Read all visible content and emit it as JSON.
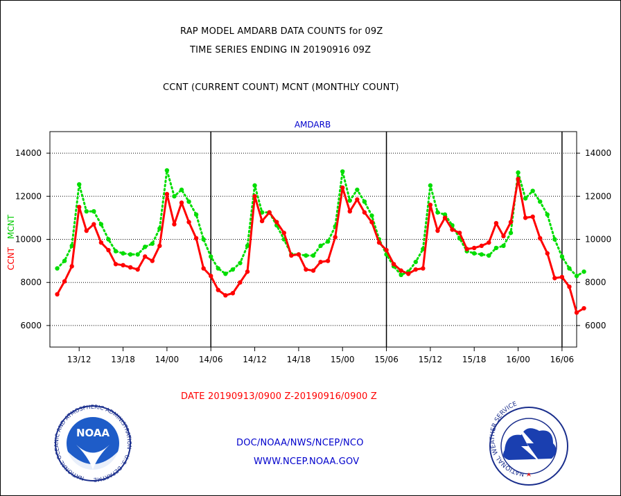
{
  "header": {
    "title_line1": "RAP MODEL AMDARB DATA COUNTS for 09Z",
    "title_line2": "TIME SERIES ENDING IN 20190916 09Z",
    "subtitle": "CCNT (CURRENT COUNT) MCNT (MONTHLY COUNT)"
  },
  "footer": {
    "date_range": "DATE 20190913/0900 Z-20190916/0900 Z",
    "org_line": "DOC/NOAA/NWS/NCEP/NCO",
    "url": "WWW.NCEP.NOAA.GOV"
  },
  "logos": {
    "noaa": {
      "text": "NOAA",
      "ring_text": "NATIONAL OCEANIC AND ATMOSPHERIC ADMINISTRATION · U.S. DEPARTMENT OF COMMERCE"
    },
    "nws": {
      "ring_text": "NATIONAL WEATHER SERVICE"
    }
  },
  "colors": {
    "ccnt": "#ff0000",
    "mcnt": "#00dd00",
    "plot_title": "#0000cc",
    "date_text": "#ff0000",
    "footer_text": "#0000cc"
  },
  "chart_data": {
    "type": "line",
    "title": "AMDARB",
    "ylabel_ccnt": "CCNT",
    "ylabel_mcnt": "MCNT",
    "ylim": [
      5000,
      15000
    ],
    "yticks": [
      6000,
      8000,
      10000,
      12000,
      14000
    ],
    "ytick_labels": [
      "6000",
      "8000",
      "10000",
      "12000",
      "14000"
    ],
    "x_range_hours": [
      -1,
      71
    ],
    "xticks": [
      {
        "hour": 3,
        "label": "13/12"
      },
      {
        "hour": 9,
        "label": "13/18"
      },
      {
        "hour": 15,
        "label": "14/00"
      },
      {
        "hour": 21,
        "label": "14/06"
      },
      {
        "hour": 27,
        "label": "14/12"
      },
      {
        "hour": 33,
        "label": "14/18"
      },
      {
        "hour": 39,
        "label": "15/00"
      },
      {
        "hour": 45,
        "label": "15/06"
      },
      {
        "hour": 51,
        "label": "15/12"
      },
      {
        "hour": 57,
        "label": "15/18"
      },
      {
        "hour": 63,
        "label": "16/00"
      },
      {
        "hour": 69,
        "label": "16/06"
      }
    ],
    "day_boundaries": [
      21,
      45,
      69
    ],
    "grid": true,
    "series": [
      {
        "name": "CCNT",
        "values": [
          7450,
          8050,
          8750,
          11500,
          10400,
          10700,
          9850,
          9500,
          8850,
          8800,
          8700,
          8600,
          9200,
          9000,
          9700,
          12100,
          10700,
          11700,
          10800,
          10050,
          8650,
          8300,
          7650,
          7400,
          7500,
          8000,
          8500,
          12000,
          10850,
          11250,
          10800,
          10300,
          9250,
          9300,
          8600,
          8550,
          8950,
          9000,
          10100,
          12400,
          11300,
          11850,
          11250,
          10800,
          9850,
          9500,
          8850,
          8550,
          8400,
          8600,
          8650,
          11600,
          10400,
          11000,
          10450,
          10300,
          9550,
          9600,
          9700,
          9850,
          10750,
          10150,
          10800,
          12800,
          11000,
          11050,
          10050,
          9350,
          8200,
          8250,
          7800,
          6600,
          6800
        ]
      },
      {
        "name": "MCNT",
        "values": [
          8650,
          9000,
          9700,
          12550,
          11300,
          11300,
          10700,
          10000,
          9450,
          9350,
          9300,
          9300,
          9650,
          9800,
          10500,
          13200,
          12000,
          12300,
          11750,
          11150,
          10000,
          9200,
          8650,
          8400,
          8600,
          8900,
          9700,
          12500,
          11250,
          11250,
          10650,
          10000,
          9300,
          9300,
          9250,
          9250,
          9700,
          9900,
          10600,
          13150,
          11800,
          12300,
          11750,
          11100,
          10000,
          9300,
          8750,
          8350,
          8500,
          8950,
          9550,
          12500,
          11250,
          11150,
          10650,
          10050,
          9450,
          9350,
          9300,
          9250,
          9600,
          9700,
          10300,
          13100,
          11900,
          12250,
          11750,
          11150,
          10000,
          9200,
          8650,
          8300,
          8500
        ]
      }
    ]
  }
}
